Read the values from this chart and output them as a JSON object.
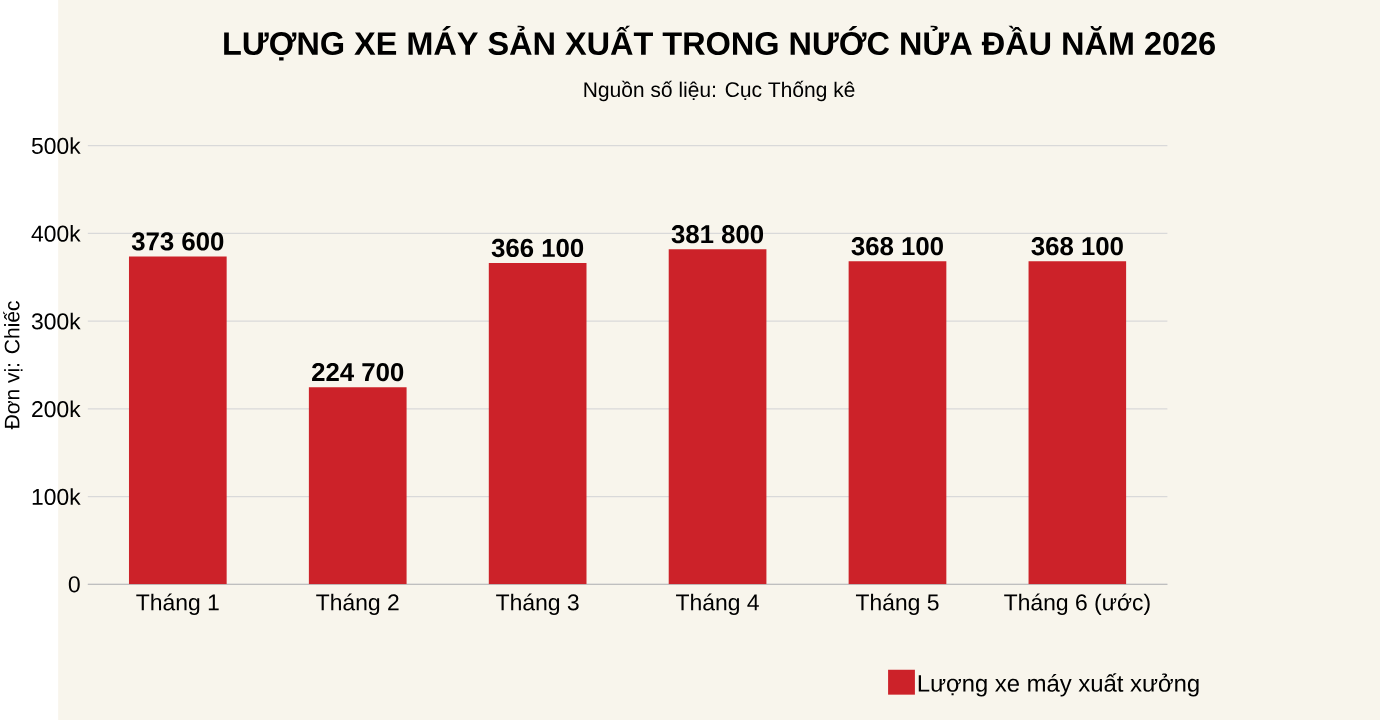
{
  "chart_data": {
    "type": "bar",
    "title": "LƯỢNG XE MÁY SẢN XUẤT TRONG NƯỚC NỬA ĐẦU NĂM 2026",
    "subtitle": "Nguồn số liệu: Cục Thống kê",
    "ylabel": "Đơn vị: Chiếc",
    "categories": [
      "Tháng 1",
      "Tháng 2",
      "Tháng 3",
      "Tháng 4",
      "Tháng 5",
      "Tháng 6 (ước)"
    ],
    "series": [
      {
        "name": "Lượng xe máy xuất xưởng",
        "color": "#cc2229",
        "values": [
          373600,
          224700,
          366100,
          381800,
          368100,
          368100
        ],
        "value_labels": [
          "373 600",
          "224 700",
          "366 100",
          "381 800",
          "368 100",
          "368 100"
        ]
      }
    ],
    "ylim": [
      0,
      500000
    ],
    "yticks": [
      {
        "value": 0,
        "label": "0"
      },
      {
        "value": 100000,
        "label": "100k"
      },
      {
        "value": 200000,
        "label": "200k"
      },
      {
        "value": 300000,
        "label": "300k"
      },
      {
        "value": 400000,
        "label": "400k"
      },
      {
        "value": 500000,
        "label": "500k"
      }
    ],
    "grid": "y",
    "legend": "bottom right"
  }
}
